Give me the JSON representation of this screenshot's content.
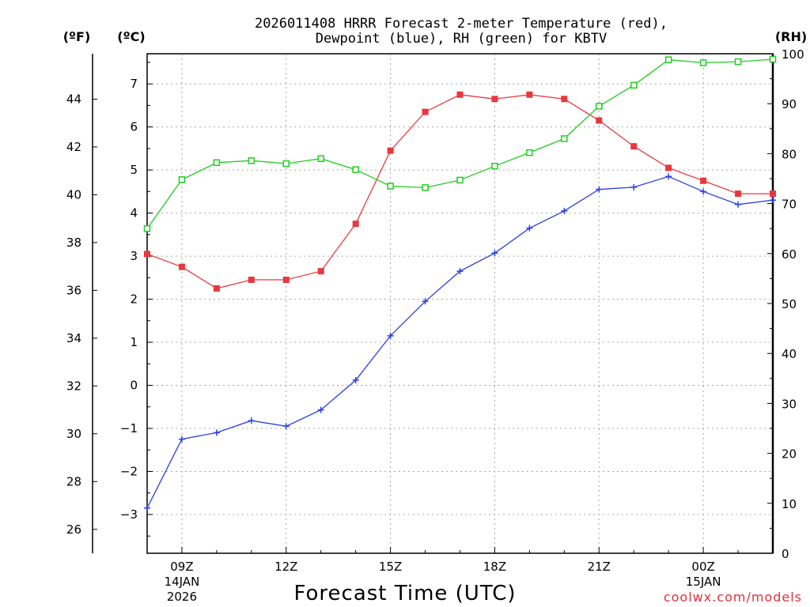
{
  "title_line1": "2026011408 HRRR Forecast 2-meter Temperature (red),",
  "title_line2": "Dewpoint (blue), RH (green) for KBTV",
  "units": {
    "f": "(ºF)",
    "c": "(ºC)",
    "rh": "(RH)"
  },
  "xlabel": "Forecast Time (UTC)",
  "credit": "coolwx.com/models",
  "colors": {
    "temperature": "#e8383d",
    "dewpoint": "#2b3fe0",
    "rh": "#22cc22",
    "credit": "#e0313a"
  },
  "chart_data": {
    "type": "line",
    "x": [
      8,
      9,
      10,
      11,
      12,
      13,
      14,
      15,
      16,
      17,
      18,
      19,
      20,
      21,
      22,
      23,
      24,
      25,
      26
    ],
    "x_unit": "hours from 14JAN2026 00Z",
    "xlim": [
      8,
      26
    ],
    "x_ticks": [
      {
        "x": 9,
        "label": "09Z",
        "line2": "14JAN",
        "line3": "2026"
      },
      {
        "x": 12,
        "label": "12Z"
      },
      {
        "x": 15,
        "label": "15Z"
      },
      {
        "x": 18,
        "label": "18Z"
      },
      {
        "x": 21,
        "label": "21Z"
      },
      {
        "x": 24,
        "label": "00Z",
        "line2": "15JAN"
      }
    ],
    "ylim_c": [
      -3.9,
      7.7
    ],
    "yticks_c": [
      -3,
      -2,
      -1,
      0,
      1,
      2,
      3,
      4,
      5,
      6,
      7
    ],
    "ylim_f": [
      25.0,
      45.9
    ],
    "yticks_f": [
      26,
      28,
      30,
      32,
      34,
      36,
      38,
      40,
      42,
      44
    ],
    "ylim_rh": [
      0,
      100
    ],
    "yticks_rh": [
      0,
      10,
      20,
      30,
      40,
      50,
      60,
      70,
      80,
      90,
      100
    ],
    "series": [
      {
        "name": "Temperature",
        "axis": "c",
        "marker": "square-filled",
        "values": [
          3.05,
          2.75,
          2.25,
          2.45,
          2.45,
          2.65,
          3.75,
          5.45,
          6.35,
          6.75,
          6.65,
          6.75,
          6.65,
          6.15,
          5.55,
          5.05,
          4.75,
          4.45,
          4.45
        ]
      },
      {
        "name": "Dewpoint",
        "axis": "c",
        "marker": "plus",
        "values": [
          -2.85,
          -1.25,
          -1.1,
          -0.82,
          -0.95,
          -0.57,
          0.12,
          1.15,
          1.95,
          2.65,
          3.07,
          3.65,
          4.05,
          4.55,
          4.6,
          4.85,
          4.5,
          4.2,
          4.3
        ]
      },
      {
        "name": "RH",
        "axis": "rh",
        "marker": "square-open",
        "values": [
          65,
          74.8,
          78.2,
          78.6,
          78.0,
          79.0,
          76.8,
          73.5,
          73.2,
          74.7,
          77.5,
          80.2,
          83.0,
          89.5,
          93.7,
          98.8,
          98.2,
          98.4,
          98.9
        ]
      }
    ]
  }
}
